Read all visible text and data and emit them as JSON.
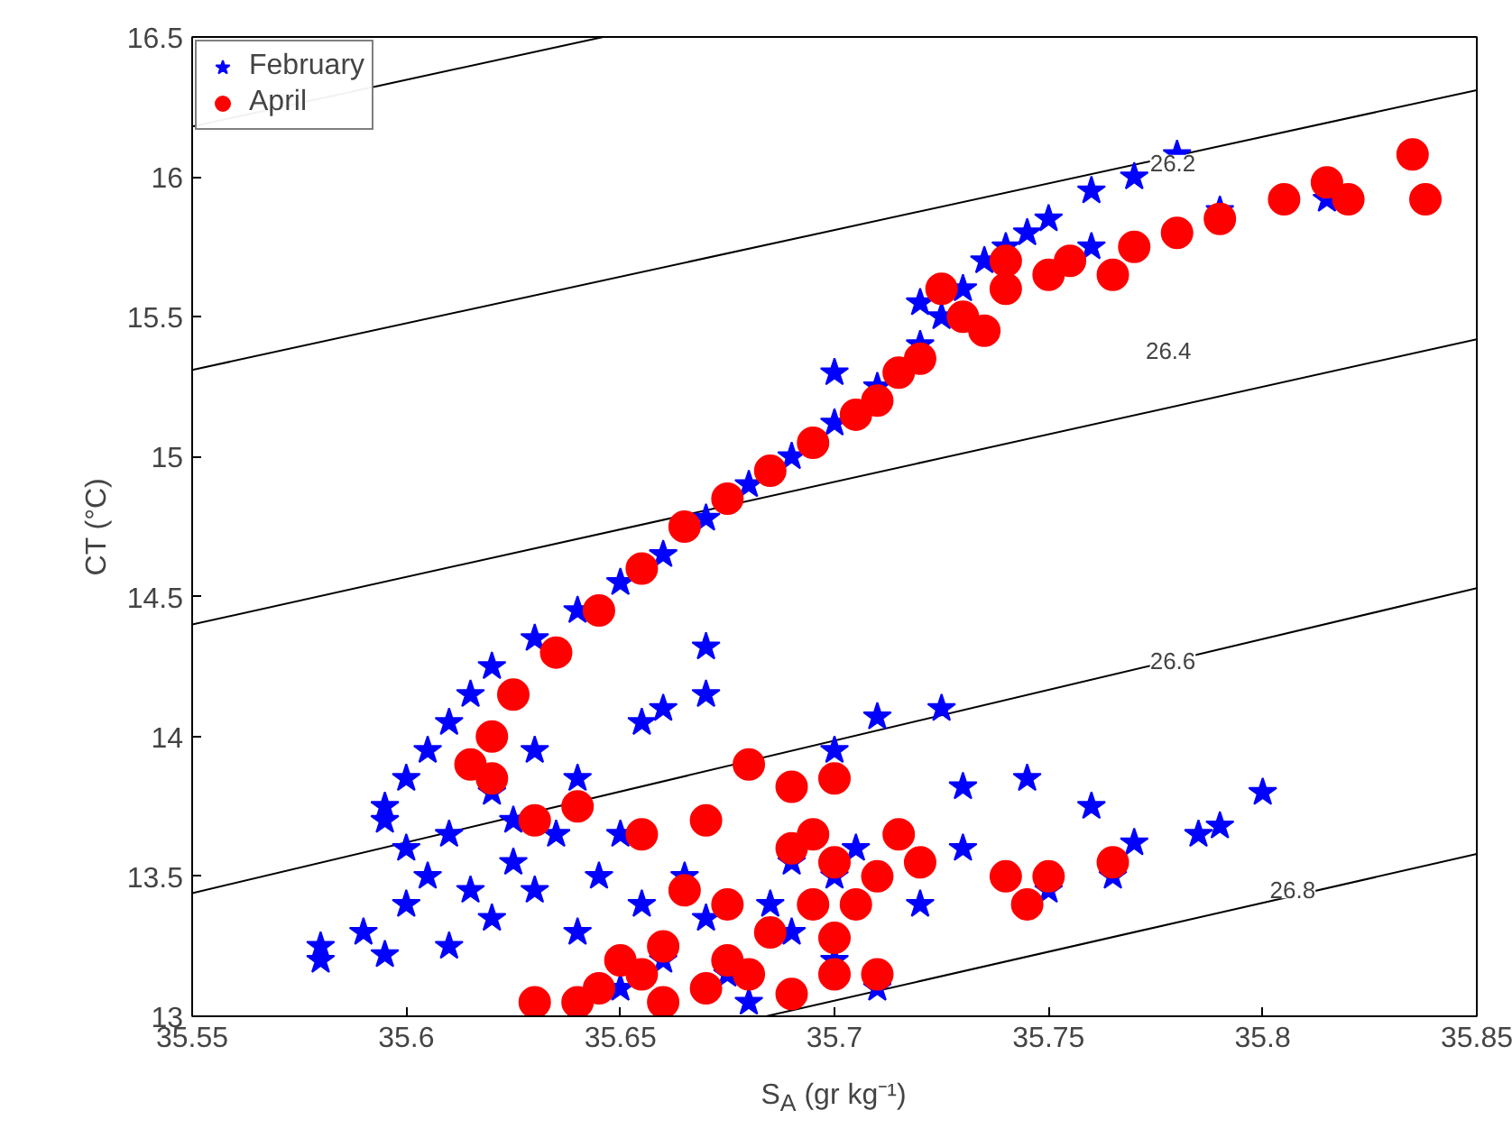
{
  "chart_data": {
    "type": "scatter",
    "xlabel": "S$_{A}$ (gr kg⁻¹)",
    "ylabel": "CT (°C)",
    "xlim": [
      35.55,
      35.85
    ],
    "ylim": [
      13,
      16.5
    ],
    "xticks": [
      35.55,
      35.6,
      35.65,
      35.7,
      35.75,
      35.8,
      35.85
    ],
    "yticks": [
      13,
      13.5,
      14,
      14.5,
      15,
      15.5,
      16,
      16.5
    ],
    "grid": false,
    "legend": "top left",
    "series": [
      {
        "type": "line",
        "color": "#000000",
        "x": [
          35.55,
          35.646
        ],
        "values": [
          16.18,
          16.5
        ]
      },
      {
        "type": "line",
        "color": "#000000",
        "x": [
          35.55,
          35.85
        ],
        "values": [
          15.31,
          16.31
        ]
      },
      {
        "type": "line",
        "color": "#000000",
        "x": [
          35.55,
          35.85
        ],
        "values": [
          14.4,
          15.42
        ]
      },
      {
        "type": "line",
        "color": "#000000",
        "x": [
          35.55,
          35.85
        ],
        "values": [
          13.44,
          14.53
        ]
      },
      {
        "type": "line",
        "color": "#000000",
        "x": [
          35.684,
          35.85
        ],
        "values": [
          13,
          13.58
        ]
      },
      {
        "name": "February",
        "marker": "star",
        "color": "#0000ff",
        "x": [
          35.595,
          35.6,
          35.605,
          35.61,
          35.615,
          35.62,
          35.63,
          35.64,
          35.65,
          35.66,
          35.67,
          35.68,
          35.69,
          35.7,
          35.71,
          35.72,
          35.725,
          35.73,
          35.735,
          35.74,
          35.75,
          35.76,
          35.77,
          35.78,
          35.745,
          35.76,
          35.79,
          35.815,
          35.72,
          35.7,
          35.63,
          35.64,
          35.66,
          35.67,
          35.67,
          35.655,
          35.7,
          35.71,
          35.725,
          35.73,
          35.745,
          35.76,
          35.8,
          35.785,
          35.79,
          35.77,
          35.765,
          35.75,
          35.73,
          35.72,
          35.71,
          35.7,
          35.58,
          35.58,
          35.59,
          35.595,
          35.6,
          35.605,
          35.61,
          35.6,
          35.595,
          35.61,
          35.615,
          35.62,
          35.625,
          35.63,
          35.64,
          35.645,
          35.65,
          35.655,
          35.66,
          35.665,
          35.67,
          35.675,
          35.68,
          35.685,
          35.69,
          35.69,
          35.7,
          35.705,
          35.65,
          35.62,
          35.625,
          35.635
        ],
        "values": [
          13.75,
          13.85,
          13.95,
          14.05,
          14.15,
          14.25,
          14.35,
          14.45,
          14.55,
          14.65,
          14.78,
          14.9,
          15.0,
          15.12,
          15.25,
          15.4,
          15.5,
          15.6,
          15.7,
          15.75,
          15.85,
          15.95,
          16.0,
          16.08,
          15.8,
          15.75,
          15.88,
          15.92,
          15.55,
          15.3,
          13.95,
          13.85,
          14.1,
          14.15,
          14.32,
          14.05,
          13.95,
          14.07,
          14.1,
          13.82,
          13.85,
          13.75,
          13.8,
          13.65,
          13.68,
          13.62,
          13.5,
          13.45,
          13.6,
          13.4,
          13.1,
          13.2,
          13.25,
          13.2,
          13.3,
          13.22,
          13.4,
          13.5,
          13.25,
          13.6,
          13.7,
          13.65,
          13.45,
          13.35,
          13.55,
          13.45,
          13.3,
          13.5,
          13.65,
          13.4,
          13.2,
          13.5,
          13.35,
          13.15,
          13.05,
          13.4,
          13.3,
          13.55,
          13.5,
          13.6,
          13.1,
          13.8,
          13.7,
          13.65
        ]
      },
      {
        "name": "April",
        "marker": "circle",
        "color": "#ff0000",
        "x": [
          35.615,
          35.62,
          35.625,
          35.635,
          35.645,
          35.655,
          35.665,
          35.675,
          35.685,
          35.695,
          35.705,
          35.715,
          35.72,
          35.73,
          35.74,
          35.735,
          35.75,
          35.765,
          35.77,
          35.78,
          35.79,
          35.805,
          35.815,
          35.82,
          35.835,
          35.838,
          35.71,
          35.725,
          35.74,
          35.755,
          35.62,
          35.63,
          35.64,
          35.655,
          35.67,
          35.68,
          35.69,
          35.695,
          35.7,
          35.69,
          35.7,
          35.71,
          35.715,
          35.72,
          35.705,
          35.695,
          35.685,
          35.675,
          35.665,
          35.66,
          35.655,
          35.65,
          35.645,
          35.64,
          35.63,
          35.66,
          35.67,
          35.68,
          35.69,
          35.7,
          35.71,
          35.74,
          35.745,
          35.75,
          35.765,
          35.7,
          35.675
        ],
        "values": [
          13.9,
          14.0,
          14.15,
          14.3,
          14.45,
          14.6,
          14.75,
          14.85,
          14.95,
          15.05,
          15.15,
          15.3,
          15.35,
          15.5,
          15.6,
          15.45,
          15.65,
          15.65,
          15.75,
          15.8,
          15.85,
          15.92,
          15.98,
          15.92,
          16.08,
          15.92,
          15.2,
          15.6,
          15.7,
          15.7,
          13.85,
          13.7,
          13.75,
          13.65,
          13.7,
          13.9,
          13.82,
          13.65,
          13.85,
          13.6,
          13.55,
          13.5,
          13.65,
          13.55,
          13.4,
          13.4,
          13.3,
          13.4,
          13.45,
          13.25,
          13.15,
          13.2,
          13.1,
          13.05,
          13.05,
          13.05,
          13.1,
          13.15,
          13.08,
          13.15,
          13.15,
          13.5,
          13.4,
          13.5,
          13.55,
          13.28,
          13.2
        ]
      }
    ],
    "annotations": [
      {
        "text": "26.2",
        "x": 35.779,
        "y": 16.05
      },
      {
        "text": "26.4",
        "x": 35.778,
        "y": 15.38
      },
      {
        "text": "26.6",
        "x": 35.779,
        "y": 14.27
      },
      {
        "text": "26.8",
        "x": 35.807,
        "y": 13.45
      }
    ]
  }
}
